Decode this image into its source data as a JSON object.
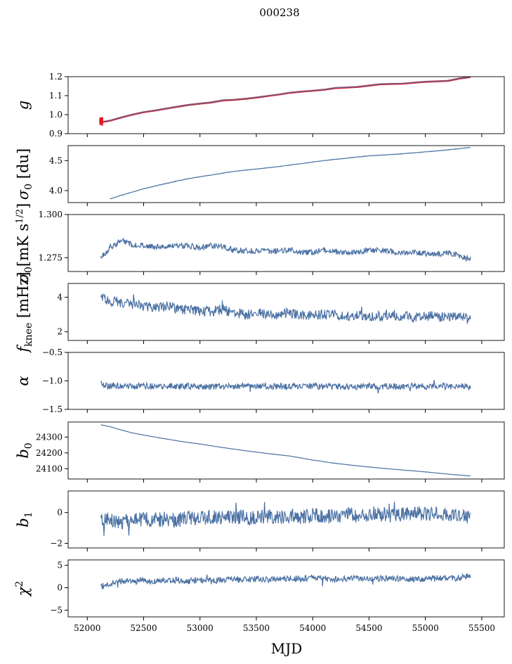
{
  "figure": {
    "title": "000238"
  },
  "colors": {
    "series": "#4c72a4",
    "overlay": "#e8141c",
    "axes": "#000000"
  },
  "xaxis": {
    "label": "MJD",
    "ticks": [
      52000,
      52500,
      53000,
      53500,
      54000,
      54500,
      55000,
      55500
    ],
    "tick_labels": [
      "52000",
      "52500",
      "53000",
      "53500",
      "54000",
      "54500",
      "55000",
      "55500"
    ],
    "lim": [
      51830,
      55700
    ]
  },
  "chart_data": [
    {
      "type": "line",
      "id": "g",
      "ylabel": "g",
      "ylim": [
        0.9,
        1.2
      ],
      "yticks": [
        0.9,
        1.0,
        1.1,
        1.2
      ],
      "yticklabels": [
        "0.9",
        "1.0",
        "1.1",
        "1.2"
      ],
      "series": [
        {
          "x": [
            52120,
            52200,
            52300,
            52400,
            52500,
            52600,
            52700,
            52800,
            52900,
            53000,
            53100,
            53200,
            53300,
            53400,
            53500,
            53600,
            53700,
            53800,
            53900,
            54000,
            54100,
            54200,
            54300,
            54400,
            54500,
            54600,
            54700,
            54800,
            54900,
            55000,
            55100,
            55200,
            55300,
            55400
          ],
          "y": [
            0.96,
            0.968,
            0.985,
            1.0,
            1.013,
            1.022,
            1.032,
            1.042,
            1.051,
            1.058,
            1.064,
            1.075,
            1.078,
            1.083,
            1.09,
            1.098,
            1.106,
            1.115,
            1.121,
            1.126,
            1.131,
            1.14,
            1.143,
            1.146,
            1.153,
            1.16,
            1.162,
            1.163,
            1.168,
            1.173,
            1.175,
            1.178,
            1.19,
            1.198
          ]
        },
        {
          "x": [
            52120,
            52200,
            52300,
            52400,
            52500,
            52600,
            52700,
            52800,
            52900,
            53000,
            53100,
            53200,
            53300,
            53400,
            53500,
            53600,
            53700,
            53800,
            53900,
            54000,
            54100,
            54200,
            54300,
            54400,
            54500,
            54600,
            54700,
            54800,
            54900,
            55000,
            55100,
            55200,
            55300,
            55400
          ],
          "y": [
            0.962,
            0.97,
            0.986,
            1.001,
            1.014,
            1.023,
            1.033,
            1.043,
            1.052,
            1.059,
            1.065,
            1.076,
            1.079,
            1.084,
            1.091,
            1.099,
            1.107,
            1.116,
            1.122,
            1.127,
            1.132,
            1.141,
            1.144,
            1.147,
            1.154,
            1.161,
            1.163,
            1.164,
            1.169,
            1.174,
            1.176,
            1.179,
            1.191,
            1.199
          ]
        }
      ]
    },
    {
      "type": "line",
      "id": "sigma0-du",
      "ylabel": "σ0 [du]",
      "ylim": [
        3.8,
        4.75
      ],
      "yticks": [
        4.0,
        4.5
      ],
      "yticklabels": [
        "4.0",
        "4.5"
      ],
      "series": [
        {
          "x": [
            52200,
            52300,
            52500,
            52700,
            52900,
            53100,
            53300,
            53500,
            53700,
            53900,
            54100,
            54300,
            54500,
            54700,
            54900,
            55100,
            55300,
            55400
          ],
          "y": [
            3.86,
            3.92,
            4.03,
            4.12,
            4.2,
            4.26,
            4.32,
            4.36,
            4.4,
            4.45,
            4.5,
            4.54,
            4.58,
            4.6,
            4.63,
            4.66,
            4.7,
            4.72
          ]
        }
      ]
    },
    {
      "type": "line",
      "id": "sigma0-mk",
      "ylabel": "σ0[mK s^1/2]",
      "ylim": [
        1.267,
        1.3
      ],
      "yticks": [
        1.275,
        1.3
      ],
      "yticklabels": [
        "1.275",
        "1.300"
      ],
      "series": [
        {
          "x": [
            52120,
            52200,
            52300,
            52400,
            52500,
            52600,
            52700,
            52800,
            52900,
            53000,
            53100,
            53200,
            53300,
            53400,
            53500,
            53600,
            53700,
            53800,
            53900,
            54000,
            54100,
            54200,
            54300,
            54400,
            54500,
            54600,
            54700,
            54800,
            54900,
            55000,
            55100,
            55200,
            55300,
            55400
          ],
          "y": [
            1.2755,
            1.28,
            1.285,
            1.2825,
            1.282,
            1.281,
            1.2815,
            1.282,
            1.2818,
            1.281,
            1.282,
            1.2815,
            1.2795,
            1.279,
            1.279,
            1.2785,
            1.279,
            1.2795,
            1.278,
            1.278,
            1.2795,
            1.2785,
            1.2775,
            1.278,
            1.2795,
            1.279,
            1.2785,
            1.278,
            1.278,
            1.2775,
            1.277,
            1.278,
            1.276,
            1.274
          ]
        }
      ]
    },
    {
      "type": "line",
      "id": "fknee",
      "ylabel": "fknee [mHz]",
      "ylim": [
        1.5,
        4.8
      ],
      "yticks": [
        2,
        4
      ],
      "yticklabels": [
        "2",
        "4"
      ],
      "series": [
        {
          "x": [
            52120,
            52200,
            52300,
            52400,
            52500,
            52600,
            52700,
            52800,
            52900,
            53000,
            53100,
            53200,
            53300,
            53400,
            53500,
            53600,
            53700,
            53800,
            53900,
            54000,
            54100,
            54200,
            54300,
            54400,
            54500,
            54600,
            54700,
            54800,
            54900,
            55000,
            55100,
            55200,
            55300,
            55400
          ],
          "y": [
            4.0,
            3.8,
            3.7,
            3.6,
            3.5,
            3.4,
            3.5,
            3.3,
            3.3,
            3.2,
            3.2,
            3.3,
            3.1,
            3.0,
            3.1,
            3.0,
            3.0,
            3.1,
            2.9,
            3.0,
            3.0,
            3.0,
            2.9,
            3.0,
            2.9,
            2.9,
            3.0,
            2.9,
            2.8,
            2.9,
            2.9,
            2.8,
            3.0,
            2.7
          ]
        }
      ]
    },
    {
      "type": "line",
      "id": "alpha",
      "ylabel": "α",
      "ylim": [
        -1.5,
        -0.5
      ],
      "yticks": [
        -1.5,
        -1.0,
        -0.5
      ],
      "yticklabels": [
        "−1.5",
        "−1.0",
        "−0.5"
      ],
      "series": [
        {
          "x": [
            52120,
            52200,
            52300,
            52400,
            52500,
            52600,
            52700,
            52800,
            52900,
            53000,
            53100,
            53200,
            53300,
            53400,
            53500,
            53600,
            53700,
            53800,
            53900,
            54000,
            54100,
            54200,
            54300,
            54400,
            54500,
            54600,
            54700,
            54800,
            54900,
            55000,
            55100,
            55200,
            55300,
            55400
          ],
          "y": [
            -1.05,
            -1.1,
            -1.08,
            -1.1,
            -1.09,
            -1.1,
            -1.09,
            -1.1,
            -1.09,
            -1.1,
            -1.1,
            -1.09,
            -1.1,
            -1.08,
            -1.1,
            -1.09,
            -1.1,
            -1.09,
            -1.1,
            -1.09,
            -1.1,
            -1.09,
            -1.1,
            -1.1,
            -1.09,
            -1.1,
            -1.09,
            -1.1,
            -1.08,
            -1.1,
            -1.09,
            -1.1,
            -1.08,
            -1.12
          ]
        }
      ]
    },
    {
      "type": "line",
      "id": "b0",
      "ylabel": "b0",
      "ylim": [
        24035,
        24395
      ],
      "yticks": [
        24100,
        24200,
        24300
      ],
      "yticklabels": [
        "24100",
        "24200",
        "24300"
      ],
      "series": [
        {
          "x": [
            52120,
            52200,
            52300,
            52400,
            52600,
            52800,
            53000,
            53200,
            53400,
            53600,
            53800,
            54000,
            54200,
            54400,
            54600,
            54800,
            55000,
            55200,
            55400
          ],
          "y": [
            24378,
            24366,
            24345,
            24326,
            24300,
            24276,
            24256,
            24234,
            24214,
            24196,
            24180,
            24155,
            24134,
            24118,
            24104,
            24092,
            24080,
            24066,
            24054
          ]
        }
      ]
    },
    {
      "type": "line",
      "id": "b1",
      "ylabel": "b1",
      "ylim": [
        -2.3,
        1.4
      ],
      "yticks": [
        -2,
        0
      ],
      "yticklabels": [
        "−2",
        "0"
      ],
      "series": [
        {
          "x": [
            52120,
            52200,
            52300,
            52400,
            52500,
            52600,
            52700,
            52800,
            52900,
            53000,
            53100,
            53200,
            53300,
            53400,
            53500,
            53600,
            53700,
            53800,
            53900,
            54000,
            54100,
            54200,
            54300,
            54400,
            54500,
            54600,
            54700,
            54800,
            54900,
            55000,
            55100,
            55200,
            55300,
            55400
          ],
          "y": [
            -0.4,
            -0.5,
            -0.6,
            -0.5,
            -0.4,
            -0.5,
            -0.4,
            -0.5,
            -0.3,
            -0.4,
            -0.3,
            -0.4,
            -0.3,
            -0.3,
            -0.4,
            -0.2,
            -0.3,
            -0.2,
            -0.3,
            -0.2,
            -0.2,
            -0.3,
            -0.1,
            -0.2,
            -0.1,
            -0.1,
            -0.2,
            -0.1,
            0.0,
            -0.1,
            -0.1,
            -0.2,
            -0.1,
            -0.4
          ]
        }
      ]
    },
    {
      "type": "line",
      "id": "chi2",
      "ylabel": "χ^2",
      "ylim": [
        -6.5,
        6.2
      ],
      "yticks": [
        -5,
        0,
        5
      ],
      "yticklabels": [
        "−5",
        "0",
        "5"
      ],
      "series": [
        {
          "x": [
            52120,
            52200,
            52300,
            52400,
            52500,
            52600,
            52700,
            52800,
            52900,
            53000,
            53100,
            53200,
            53300,
            53400,
            53500,
            53600,
            53700,
            53800,
            53900,
            54000,
            54100,
            54200,
            54300,
            54400,
            54500,
            54600,
            54700,
            54800,
            54900,
            55000,
            55100,
            55200,
            55300,
            55400
          ],
          "y": [
            0.2,
            1.0,
            1.5,
            1.4,
            1.6,
            1.5,
            1.6,
            1.7,
            1.5,
            1.8,
            1.6,
            1.7,
            1.9,
            1.8,
            2.0,
            1.8,
            1.9,
            2.1,
            2.0,
            2.2,
            2.0,
            1.9,
            2.1,
            2.0,
            1.9,
            2.1,
            2.2,
            2.0,
            1.9,
            2.0,
            2.1,
            2.0,
            2.2,
            2.7
          ]
        }
      ]
    }
  ]
}
